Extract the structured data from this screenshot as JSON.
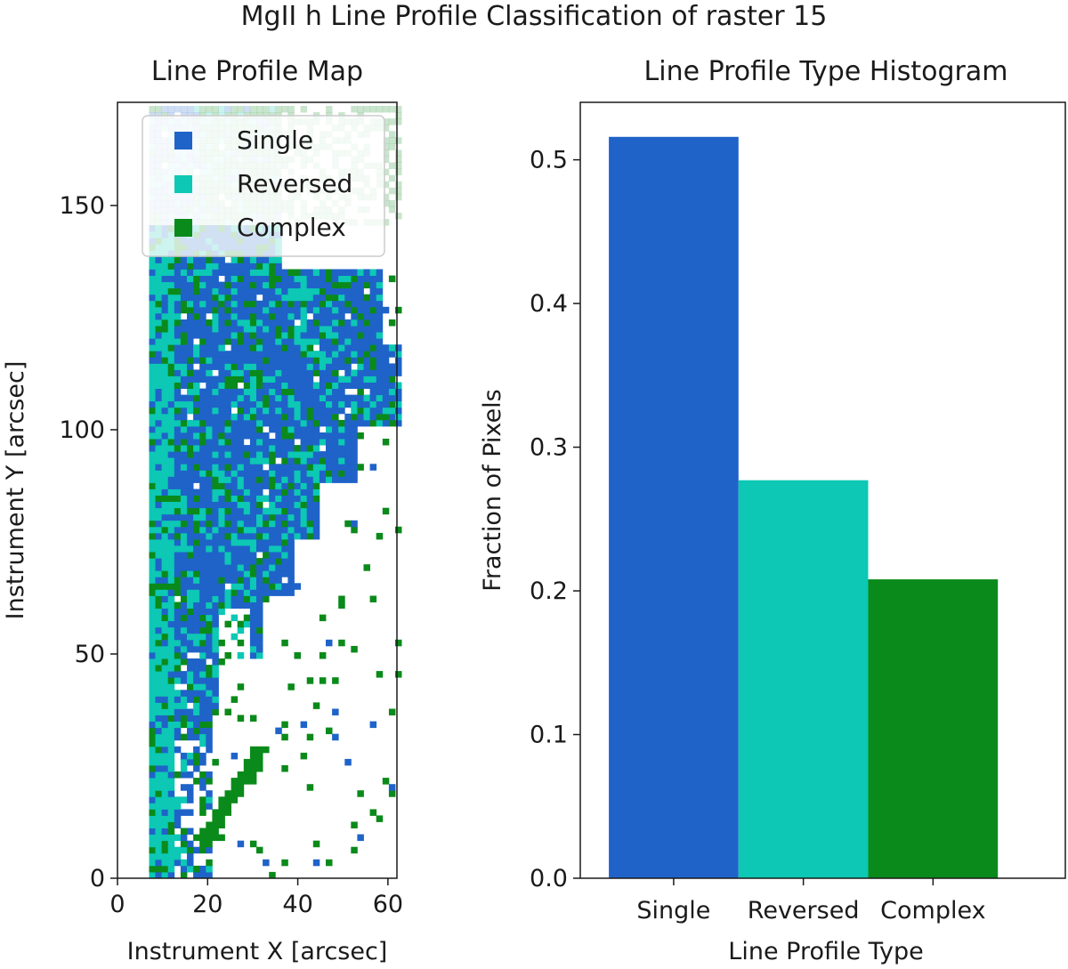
{
  "figure": {
    "title": "MgII h Line Profile Classification of raster 15"
  },
  "colors": {
    "single": "#1f63c9",
    "reversed": "#0cc8b4",
    "complex": "#0a8a1a",
    "axis": "#1a1a1a"
  },
  "chart_data": [
    {
      "type": "heatmap",
      "title": "Line Profile Map",
      "xlabel": "Instrument X [arcsec]",
      "ylabel": "Instrument Y [arcsec]",
      "xlim": [
        0,
        62
      ],
      "ylim": [
        0,
        173
      ],
      "xticks": [
        0,
        20,
        40,
        60
      ],
      "yticks": [
        0,
        50,
        100,
        150
      ],
      "categories": [
        "Single",
        "Reversed",
        "Complex"
      ],
      "legend": {
        "position": "upper-right",
        "entries": [
          "Single",
          "Reversed",
          "Complex"
        ]
      }
    },
    {
      "type": "bar",
      "title": "Line Profile Type Histogram",
      "xlabel": "Line Profile Type",
      "ylabel": "Fraction of Pixels",
      "categories": [
        "Single",
        "Reversed",
        "Complex"
      ],
      "values": [
        0.516,
        0.277,
        0.208
      ],
      "ylim": [
        0,
        0.54
      ],
      "yticks": [
        "0.0",
        "0.1",
        "0.2",
        "0.3",
        "0.4",
        "0.5"
      ],
      "grid": false
    }
  ]
}
